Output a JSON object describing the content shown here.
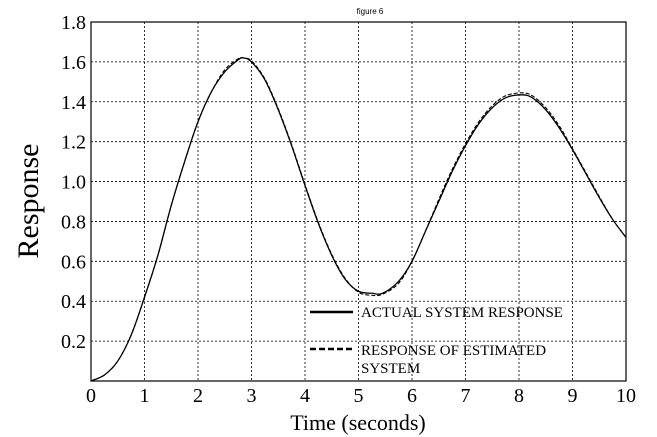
{
  "figure_title": "figure 6",
  "chart_data": {
    "type": "line",
    "title": "figure 6",
    "xlabel": "Time (seconds)",
    "ylabel": "Response",
    "xlim": [
      0,
      10
    ],
    "ylim": [
      0,
      1.8
    ],
    "x_ticks": [
      "0",
      "1",
      "2",
      "3",
      "4",
      "5",
      "6",
      "7",
      "8",
      "9",
      "10"
    ],
    "y_ticks": [
      "0.2",
      "0.4",
      "0.6",
      "0.8",
      "1.0",
      "1.2",
      "1.4",
      "1.6",
      "1.8"
    ],
    "grid": true,
    "legend_position": "bottom-center",
    "series": [
      {
        "name": "ACTUAL SYSTEM RESPONSE",
        "style": "solid",
        "color": "#000000",
        "x": [
          0,
          0.25,
          0.5,
          0.75,
          1.0,
          1.25,
          1.5,
          1.75,
          2.0,
          2.25,
          2.5,
          2.75,
          2.85,
          3.0,
          3.25,
          3.5,
          3.75,
          4.0,
          4.25,
          4.5,
          4.75,
          5.0,
          5.25,
          5.45,
          5.75,
          6.0,
          6.25,
          6.5,
          6.75,
          7.0,
          7.25,
          7.5,
          7.75,
          8.05,
          8.25,
          8.5,
          8.75,
          9.0,
          9.25,
          9.5,
          9.75,
          10.0
        ],
        "y": [
          0.0,
          0.03,
          0.1,
          0.23,
          0.42,
          0.63,
          0.88,
          1.1,
          1.3,
          1.45,
          1.55,
          1.61,
          1.62,
          1.6,
          1.51,
          1.36,
          1.18,
          0.98,
          0.79,
          0.63,
          0.51,
          0.45,
          0.44,
          0.44,
          0.5,
          0.6,
          0.75,
          0.9,
          1.05,
          1.18,
          1.29,
          1.37,
          1.42,
          1.435,
          1.42,
          1.36,
          1.27,
          1.16,
          1.04,
          0.92,
          0.81,
          0.72
        ]
      },
      {
        "name": "RESPONSE OF ESTIMATED SYSTEM",
        "style": "dashed",
        "color": "#000000",
        "x": [
          0,
          0.25,
          0.5,
          0.75,
          1.0,
          1.25,
          1.5,
          1.75,
          2.0,
          2.25,
          2.5,
          2.75,
          2.85,
          3.0,
          3.25,
          3.5,
          3.75,
          4.0,
          4.25,
          4.5,
          4.75,
          5.0,
          5.25,
          5.45,
          5.75,
          6.0,
          6.25,
          6.5,
          6.75,
          7.0,
          7.25,
          7.5,
          7.75,
          8.05,
          8.25,
          8.5,
          8.75,
          9.0,
          9.25,
          9.5,
          9.75,
          10.0
        ],
        "y": [
          0.0,
          0.03,
          0.1,
          0.23,
          0.42,
          0.63,
          0.88,
          1.1,
          1.3,
          1.45,
          1.56,
          1.615,
          1.62,
          1.605,
          1.515,
          1.365,
          1.185,
          0.985,
          0.795,
          0.635,
          0.515,
          0.445,
          0.43,
          0.435,
          0.49,
          0.6,
          0.75,
          0.91,
          1.06,
          1.19,
          1.3,
          1.38,
          1.43,
          1.445,
          1.43,
          1.37,
          1.28,
          1.165,
          1.045,
          0.925,
          0.81,
          0.72
        ]
      }
    ]
  }
}
